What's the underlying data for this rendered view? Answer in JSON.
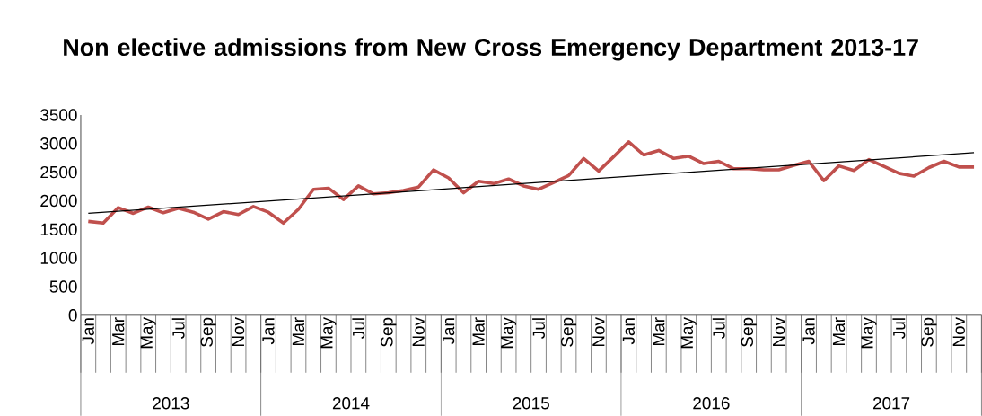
{
  "chart_data": {
    "type": "line",
    "title": "Non elective admissions from New Cross Emergency Department 2013-17",
    "categories": [
      "Jan",
      null,
      "Mar",
      null,
      "May",
      null,
      "Jul",
      null,
      "Sep",
      null,
      "Nov",
      null,
      "Jan",
      null,
      "Mar",
      null,
      "May",
      null,
      "Jul",
      null,
      "Sep",
      null,
      "Nov",
      null,
      "Jan",
      null,
      "Mar",
      null,
      "May",
      null,
      "Jul",
      null,
      "Sep",
      null,
      "Nov",
      null,
      "Jan",
      null,
      "Mar",
      null,
      "May",
      null,
      "Jul",
      null,
      "Sep",
      null,
      "Nov",
      null,
      "Jan",
      null,
      "Mar",
      null,
      "May",
      null,
      "Jul",
      null,
      "Sep",
      null,
      "Nov",
      null
    ],
    "series": [
      {
        "color": "#c0504d",
        "values": [
          1640,
          1610,
          1880,
          1780,
          1890,
          1790,
          1870,
          1800,
          1680,
          1810,
          1760,
          1900,
          1800,
          1610,
          1850,
          2200,
          2220,
          2020,
          2260,
          2120,
          2140,
          2180,
          2240,
          2540,
          2400,
          2140,
          2340,
          2300,
          2380,
          2260,
          2200,
          2320,
          2440,
          2740,
          2520,
          2770,
          3030,
          2800,
          2880,
          2740,
          2780,
          2650,
          2690,
          2560,
          2560,
          2540,
          2540,
          2620,
          2690,
          2350,
          2610,
          2530,
          2720,
          2600,
          2480,
          2430,
          2580,
          2690,
          2590,
          2590
        ]
      },
      {
        "color": "#000000",
        "values": [
          1780,
          null,
          null,
          null,
          null,
          null,
          null,
          null,
          null,
          null,
          null,
          null,
          null,
          null,
          null,
          null,
          null,
          null,
          null,
          null,
          null,
          null,
          null,
          null,
          null,
          null,
          null,
          null,
          null,
          null,
          null,
          null,
          null,
          null,
          null,
          null,
          null,
          null,
          null,
          null,
          null,
          null,
          null,
          null,
          null,
          null,
          null,
          null,
          null,
          null,
          null,
          null,
          null,
          null,
          null,
          null,
          null,
          null,
          null,
          2840
        ]
      }
    ],
    "annotations": [
      "2013",
      "2014",
      "2015",
      "2016",
      "2017"
    ],
    "ylim": [
      0,
      3500
    ],
    "yticks": [
      0,
      500,
      1000,
      1500,
      2000,
      2500,
      3000,
      3500
    ],
    "grid": false,
    "legend": false,
    "marker": "none",
    "line_style": "solid"
  }
}
